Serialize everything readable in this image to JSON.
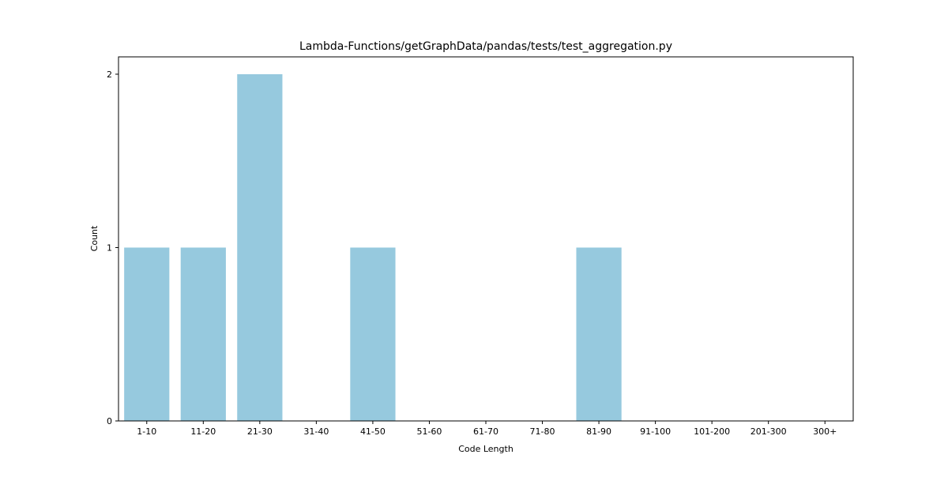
{
  "chart_data": {
    "type": "bar",
    "title": "Lambda-Functions/getGraphData/pandas/tests/test_aggregation.py",
    "xlabel": "Code Length",
    "ylabel": "Count",
    "categories": [
      "1-10",
      "11-20",
      "21-30",
      "31-40",
      "41-50",
      "51-60",
      "61-70",
      "71-80",
      "81-90",
      "91-100",
      "101-200",
      "201-300",
      "300+"
    ],
    "values": [
      1,
      1,
      2,
      0,
      1,
      0,
      0,
      0,
      1,
      0,
      0,
      0,
      0
    ],
    "yticks": [
      0,
      1,
      2
    ],
    "ylim": [
      0,
      2.1
    ],
    "grid": false,
    "bar_color": "#96c9de"
  }
}
